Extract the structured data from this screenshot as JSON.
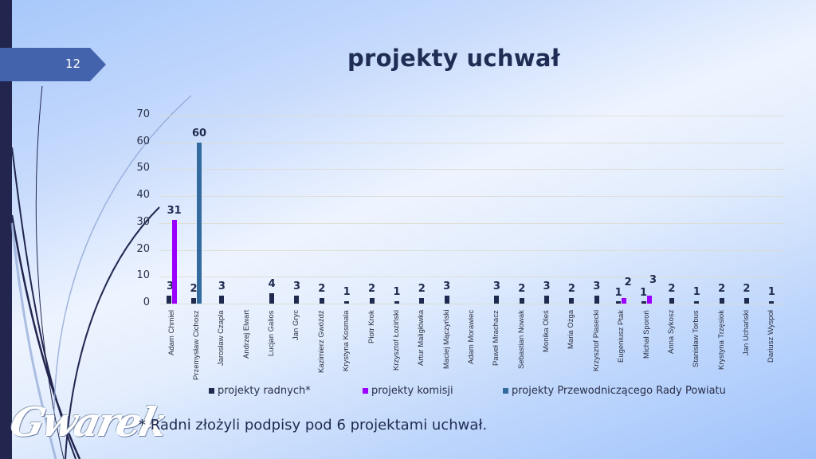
{
  "slide": {
    "number": "12",
    "title": "projekty uchwał",
    "footnote": "* Radni złożyli podpisy pod 6 projektami uchwał.",
    "logo_text": "Gwarek"
  },
  "legend": [
    {
      "label": "projekty radnych*",
      "color": "#1f2a4f"
    },
    {
      "label": "projekty komisji",
      "color": "#9b00ff"
    },
    {
      "label": "projekty Przewodniczącego Rady Powiatu",
      "color": "#336b9e"
    }
  ],
  "chart_data": {
    "type": "bar",
    "title": "projekty uchwał",
    "xlabel": "",
    "ylabel": "",
    "ylim": [
      0,
      70
    ],
    "yticks": [
      0,
      10,
      20,
      30,
      40,
      50,
      60,
      70
    ],
    "grid": true,
    "legend_position": "bottom",
    "categories": [
      "Adam Chmiel",
      "Przemysław Cichosz",
      "Jarosław Czapla",
      "Andrzej Elwart",
      "Lucjan Galios",
      "Jan Gryc",
      "Kazimierz Gwóźdź",
      "Krystyna Kosmala",
      "Piotr Krok",
      "Krzysztof Łoziński",
      "Artur Maligłówka",
      "Maciej Mączyński",
      "Adam Morawiec",
      "Paweł Mrachacz",
      "Sebastian Nowak",
      "Monika Oleś",
      "Maria Ożga",
      "Krzysztof Piasecki",
      "Eugeniusz Ptak",
      "Michał Sporoń",
      "Anna Sykosz",
      "Stanisław Torbus",
      "Krystyna Trzęsiok",
      "Jan Uchański",
      "Dariusz Wyspoł"
    ],
    "series": [
      {
        "name": "projekty radnych*",
        "color": "#1f2a4f",
        "values": [
          3,
          2,
          3,
          null,
          4,
          3,
          2,
          1,
          2,
          1,
          2,
          3,
          null,
          3,
          2,
          3,
          2,
          3,
          1,
          1,
          2,
          1,
          2,
          2,
          1
        ]
      },
      {
        "name": "projekty komisji",
        "color": "#9b00ff",
        "values": [
          31,
          null,
          null,
          null,
          null,
          null,
          null,
          null,
          null,
          null,
          null,
          null,
          null,
          null,
          null,
          null,
          null,
          null,
          2,
          3,
          null,
          null,
          null,
          null,
          null
        ]
      },
      {
        "name": "projekty Przewodniczącego Rady Powiatu",
        "color": "#336b9e",
        "values": [
          null,
          60,
          null,
          null,
          null,
          null,
          null,
          null,
          null,
          null,
          null,
          null,
          null,
          null,
          null,
          null,
          null,
          null,
          null,
          null,
          null,
          null,
          null,
          null,
          null
        ]
      }
    ]
  }
}
